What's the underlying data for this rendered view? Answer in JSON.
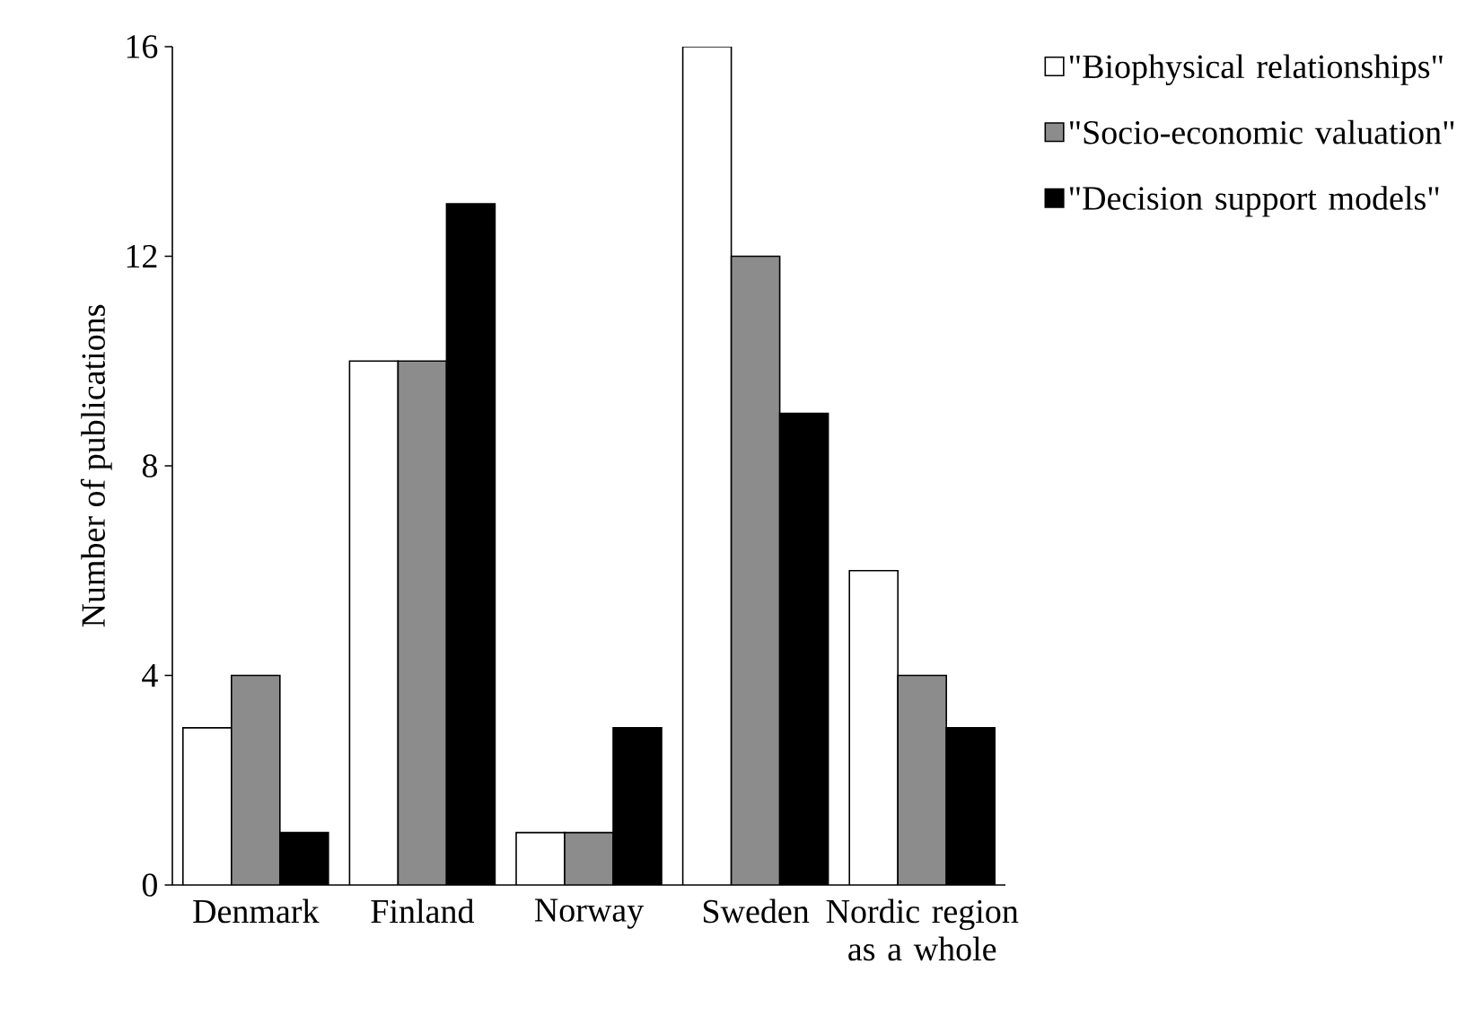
{
  "chart_data": {
    "type": "bar",
    "ylabel": "Number of publications",
    "categories": [
      "Denmark",
      "Finland",
      "Norway",
      "Sweden",
      "Nordic region as a whole"
    ],
    "series": [
      {
        "name": "\"Biophysical relationships\"",
        "color": "#ffffff",
        "values": [
          3,
          10,
          1,
          16,
          6
        ]
      },
      {
        "name": "\"Socio-economic valuation\"",
        "color": "#8c8c8c",
        "values": [
          4,
          10,
          1,
          12,
          4
        ]
      },
      {
        "name": "\"Decision support models\"",
        "color": "#000000",
        "values": [
          1,
          13,
          3,
          9,
          3
        ]
      }
    ],
    "ylim": [
      0,
      16
    ],
    "yticks": [
      0,
      4,
      8,
      12,
      16
    ],
    "legend": "top right"
  }
}
